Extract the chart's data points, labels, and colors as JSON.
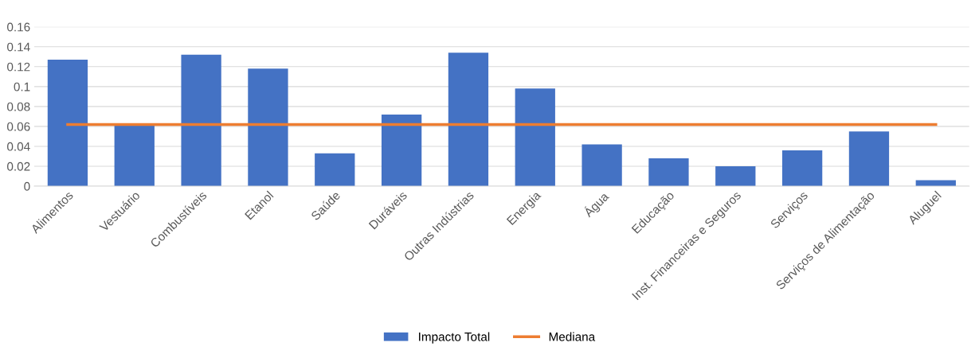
{
  "chart_data": {
    "type": "bar",
    "categories": [
      "Alimentos",
      "Vestuário",
      "Combustíveis",
      "Etanol",
      "Saúde",
      "Duráveis",
      "Outras Indústrias",
      "Energia",
      "Água",
      "Educação",
      "Inst. Financeiras e Seguros",
      "Serviços",
      "Serviços de Alimentação",
      "Aluguel"
    ],
    "series": [
      {
        "name": "Impacto Total",
        "color": "#4472c4",
        "values": [
          0.127,
          0.061,
          0.132,
          0.118,
          0.033,
          0.072,
          0.134,
          0.098,
          0.042,
          0.028,
          0.02,
          0.036,
          0.055,
          0.006
        ]
      },
      {
        "name": "Mediana",
        "color": "#ed7d31",
        "type": "line",
        "values": [
          0.062,
          0.062,
          0.062,
          0.062,
          0.062,
          0.062,
          0.062,
          0.062,
          0.062,
          0.062,
          0.062,
          0.062,
          0.062,
          0.062
        ]
      }
    ],
    "ylim": [
      0,
      0.16
    ],
    "yticks": [
      {
        "value": 0,
        "label": "0"
      },
      {
        "value": 0.02,
        "label": "0.02"
      },
      {
        "value": 0.04,
        "label": "0.04"
      },
      {
        "value": 0.06,
        "label": "0.06"
      },
      {
        "value": 0.08,
        "label": "0.08"
      },
      {
        "value": 0.1,
        "label": "0.1"
      },
      {
        "value": 0.12,
        "label": "0.12"
      },
      {
        "value": 0.14,
        "label": "0.14"
      },
      {
        "value": 0.16,
        "label": "0.16"
      }
    ],
    "grid": "y",
    "legend": "bottom",
    "marker": "none",
    "line_style": "solid"
  }
}
